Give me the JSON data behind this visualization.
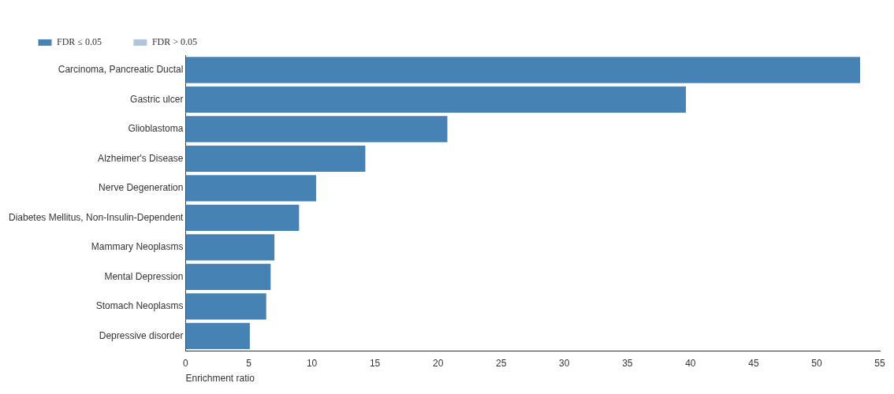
{
  "chart_data": {
    "type": "bar",
    "orientation": "horizontal",
    "xlabel": "Enrichment ratio",
    "categories": [
      "Carcinoma, Pancreatic Ductal",
      "Gastric ulcer",
      "Glioblastoma",
      "Alzheimer's Disease",
      "Nerve Degeneration",
      "Diabetes Mellitus, Non-Insulin-Dependent",
      "Mammary Neoplasms",
      "Mental Depression",
      "Stomach Neoplasms",
      "Depressive disorder"
    ],
    "series": [
      {
        "name": "FDR ≤ 0.05",
        "color": "#4682b4",
        "values": [
          53.5,
          39.7,
          20.8,
          14.3,
          10.4,
          9.05,
          7.1,
          6.8,
          6.45,
          5.15
        ]
      },
      {
        "name": "FDR > 0.05",
        "color": "#b0c4de",
        "values": [
          null,
          null,
          null,
          null,
          null,
          null,
          null,
          null,
          null,
          null
        ]
      }
    ],
    "stacked": true,
    "xlim": [
      0,
      55
    ],
    "xticks": [
      0,
      5,
      10,
      15,
      20,
      25,
      30,
      35,
      40,
      45,
      50,
      55
    ],
    "grid": false,
    "legend": "top left"
  }
}
